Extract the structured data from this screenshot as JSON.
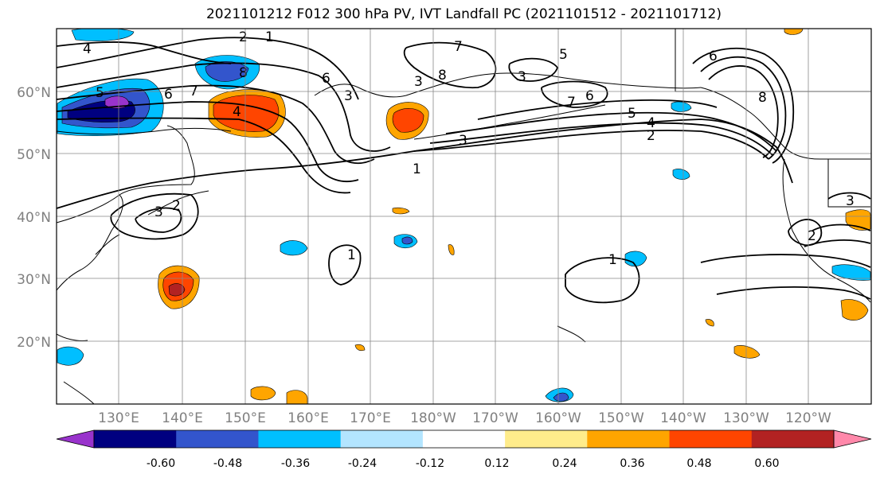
{
  "title": "2021101212 F012 300 hPa PV, IVT Landfall PC (2021101512 - 2021101712)",
  "lat_labels": [
    "60°N",
    "50°N",
    "40°N",
    "30°N",
    "20°N"
  ],
  "lon_labels": [
    "130°E",
    "140°E",
    "150°E",
    "160°E",
    "170°E",
    "180°W",
    "170°W",
    "160°W",
    "150°W",
    "140°W",
    "130°W",
    "120°W"
  ],
  "colorbar": {
    "colors": [
      "#9933cc",
      "#000080",
      "#3355cc",
      "#00bfff",
      "#b3e5ff",
      "#ffffff",
      "#ffec8b",
      "#ffa500",
      "#ff4500",
      "#b22222",
      "#ff88aa"
    ],
    "tick_labels": [
      "-0.60",
      "-0.48",
      "-0.36",
      "-0.24",
      "-0.12",
      "0.12",
      "0.24",
      "0.36",
      "0.48",
      "0.60"
    ]
  },
  "contour_labels": [
    "4",
    "2",
    "1",
    "5",
    "6",
    "7",
    "8",
    "4",
    "3",
    "6",
    "8",
    "3",
    "7",
    "5",
    "6",
    "7",
    "5",
    "4",
    "2",
    "6",
    "8",
    "3",
    "1",
    "3",
    "2",
    "1",
    "1",
    "3",
    "2",
    "3"
  ]
}
